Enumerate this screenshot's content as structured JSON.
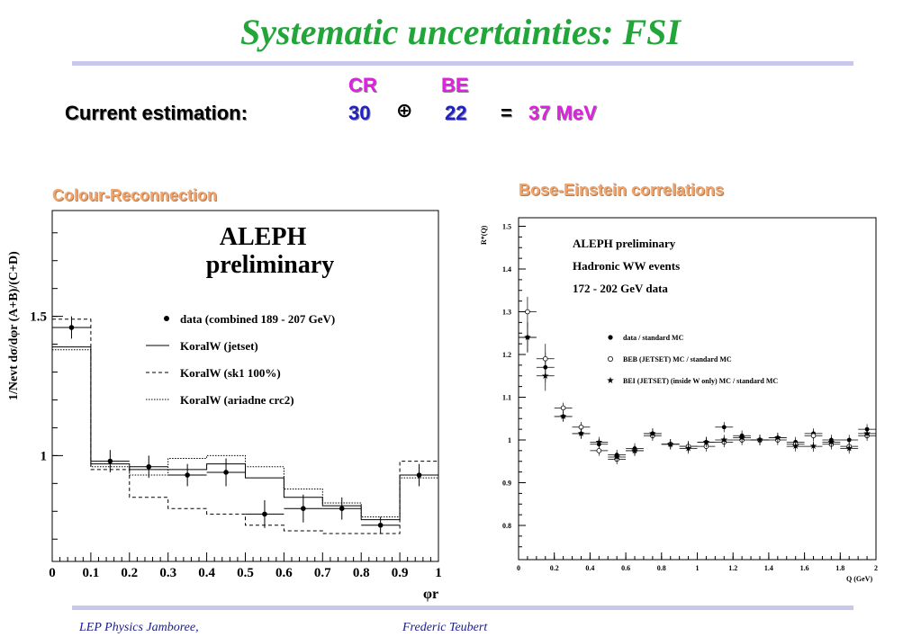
{
  "slide": {
    "title": "Systematic uncertainties: FSI",
    "estimation_label": "Current estimation:",
    "cr_label": "CR",
    "be_label": "BE",
    "cr_value": "30",
    "oplus": "⊕",
    "be_value": "22",
    "equals": "=",
    "total": "37 MeV",
    "footer_left": "LEP Physics Jamboree,",
    "footer_right": "Frederic Teubert"
  },
  "colors": {
    "title": "#22a63a",
    "cr_be_label": "#e020e0",
    "values": "#2020c8",
    "rule": "#c8c8ec",
    "panel_title": "#f2a46a"
  },
  "chart_data": [
    {
      "type": "line",
      "panel_title": "Colour-Reconnection",
      "annotation": [
        "ALEPH",
        "preliminary"
      ],
      "xlabel": "φr",
      "ylabel": "1/Nevt dσ/dφr (A+B)/(C+D)",
      "xlim": [
        0,
        1
      ],
      "ylim": [
        0.62,
        1.88
      ],
      "x_ticks": [
        "0",
        "0.1",
        "0.2",
        "0.3",
        "0.4",
        "0.5",
        "0.6",
        "0.7",
        "0.8",
        "0.9",
        "1"
      ],
      "y_ticks": [
        "1",
        "1.5"
      ],
      "legend": [
        "data (combined 189 - 207 GeV)",
        "KoralW (jetset)",
        "KoralW (sk1 100%)",
        "KoralW (ariadne crc2)"
      ],
      "series": [
        {
          "name": "data (combined 189 - 207 GeV)",
          "x": [
            0.05,
            0.15,
            0.25,
            0.35,
            0.45,
            0.55,
            0.65,
            0.75,
            0.85,
            0.95
          ],
          "y": [
            1.46,
            0.98,
            0.96,
            0.93,
            0.94,
            0.79,
            0.81,
            0.81,
            0.75,
            0.93
          ],
          "err": [
            0.04,
            0.04,
            0.04,
            0.04,
            0.05,
            0.05,
            0.05,
            0.04,
            0.03,
            0.04
          ]
        },
        {
          "name": "KoralW (jetset)",
          "edges": [
            0,
            0.1,
            0.2,
            0.3,
            0.4,
            0.5,
            0.6,
            0.7,
            0.8,
            0.9,
            1.0
          ],
          "y": [
            1.39,
            0.97,
            0.95,
            0.95,
            0.97,
            0.92,
            0.85,
            0.82,
            0.77,
            0.93
          ]
        },
        {
          "name": "KoralW (sk1 100%)",
          "edges": [
            0,
            0.1,
            0.2,
            0.3,
            0.4,
            0.5,
            0.6,
            0.7,
            0.8,
            0.9,
            1.0
          ],
          "y": [
            1.49,
            0.95,
            0.85,
            0.81,
            0.79,
            0.75,
            0.73,
            0.72,
            0.72,
            0.98
          ]
        },
        {
          "name": "KoralW (ariadne crc2)",
          "edges": [
            0,
            0.1,
            0.2,
            0.3,
            0.4,
            0.5,
            0.6,
            0.7,
            0.8,
            0.9,
            1.0
          ],
          "y": [
            1.38,
            0.96,
            0.93,
            0.99,
            1.0,
            0.96,
            0.88,
            0.83,
            0.78,
            0.92
          ]
        }
      ]
    },
    {
      "type": "scatter",
      "panel_title": "Bose-Einstein correlations",
      "annotation": [
        "ALEPH preliminary",
        "Hadronic WW events",
        "172 - 202 GeV data"
      ],
      "xlabel": "Q (GeV)",
      "ylabel": "R*(Q)",
      "xlim": [
        0,
        2
      ],
      "ylim": [
        0.72,
        1.52
      ],
      "x_ticks": [
        "0",
        "0.2",
        "0.4",
        "0.6",
        "0.8",
        "1",
        "1.2",
        "1.4",
        "1.6",
        "1.8",
        "2"
      ],
      "y_ticks": [
        "0.8",
        "0.9",
        "1",
        "1.1",
        "1.2",
        "1.3",
        "1.4",
        "1.5"
      ],
      "legend": [
        "data / standard MC",
        "BEB (JETSET) MC / standard MC",
        "BEI (JETSET) (inside W only) MC / standard MC"
      ],
      "series": [
        {
          "name": "data / standard MC",
          "marker": "filled-circle",
          "x": [
            0.05,
            0.15,
            0.25,
            0.35,
            0.45,
            0.55,
            0.65,
            0.75,
            0.85,
            0.95,
            1.05,
            1.15,
            1.25,
            1.35,
            1.45,
            1.55,
            1.65,
            1.75,
            1.85,
            1.95
          ],
          "y": [
            1.24,
            1.17,
            1.055,
            1.015,
            0.99,
            0.965,
            0.98,
            1.015,
            0.99,
            0.985,
            0.995,
            1.03,
            1.01,
            1.0,
            1.005,
            0.995,
            1.015,
            1.0,
            1.0,
            1.025
          ]
        },
        {
          "name": "BEB (JETSET) MC / standard MC",
          "marker": "open-circle",
          "x": [
            0.05,
            0.15,
            0.25,
            0.35,
            0.45,
            0.55,
            0.65,
            0.75,
            0.85,
            0.95,
            1.05,
            1.15,
            1.25,
            1.35,
            1.45,
            1.55,
            1.65,
            1.75,
            1.85,
            1.95
          ],
          "y": [
            1.3,
            1.19,
            1.075,
            1.03,
            0.975,
            0.955,
            0.975,
            1.01,
            0.99,
            0.985,
            0.985,
            0.995,
            1.0,
            1.0,
            1.0,
            0.99,
            1.01,
            0.99,
            0.985,
            1.01
          ]
        },
        {
          "name": "BEI (JETSET) (inside W only) MC / standard MC",
          "marker": "star",
          "x": [
            0.05,
            0.15,
            0.25,
            0.35,
            0.45,
            0.55,
            0.65,
            0.75,
            0.85,
            0.95,
            1.05,
            1.15,
            1.25,
            1.35,
            1.45,
            1.55,
            1.65,
            1.75,
            1.85,
            1.95
          ],
          "y": [
            1.24,
            1.15,
            1.055,
            1.015,
            0.995,
            0.96,
            0.975,
            1.015,
            0.99,
            0.98,
            0.995,
            1.0,
            1.005,
            1.0,
            1.005,
            0.985,
            0.985,
            0.995,
            0.98,
            1.015
          ]
        }
      ]
    }
  ]
}
